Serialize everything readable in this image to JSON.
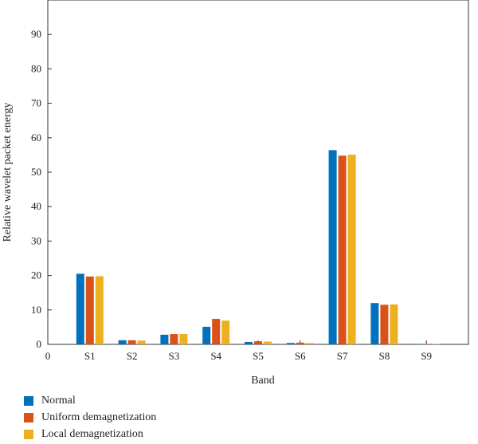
{
  "chart_data": {
    "type": "bar",
    "categories": [
      "S1",
      "S2",
      "S3",
      "S4",
      "S5",
      "S6",
      "S7",
      "S8",
      "S9"
    ],
    "x_origin_label": "0",
    "xlabel": "Band",
    "ylabel": "Relative wavelet packet energy",
    "ylim": [
      0,
      100
    ],
    "yticks": [
      0,
      10,
      20,
      30,
      40,
      50,
      60,
      70,
      80,
      90
    ],
    "grid": false,
    "legend_position": "bottom-left",
    "series": [
      {
        "name": "Normal",
        "color": "#0072BD",
        "values": [
          20.5,
          1.2,
          2.8,
          5.1,
          0.7,
          0.4,
          56.4,
          12.0,
          0.15
        ]
      },
      {
        "name": "Uniform demagnetization",
        "color": "#D95319",
        "values": [
          19.7,
          1.2,
          3.0,
          7.4,
          0.9,
          0.5,
          54.8,
          11.5,
          0.1
        ]
      },
      {
        "name": "Local demagnetization",
        "color": "#EDB120",
        "values": [
          19.8,
          1.1,
          3.0,
          6.9,
          0.8,
          0.4,
          55.1,
          11.6,
          0.1
        ]
      }
    ]
  }
}
